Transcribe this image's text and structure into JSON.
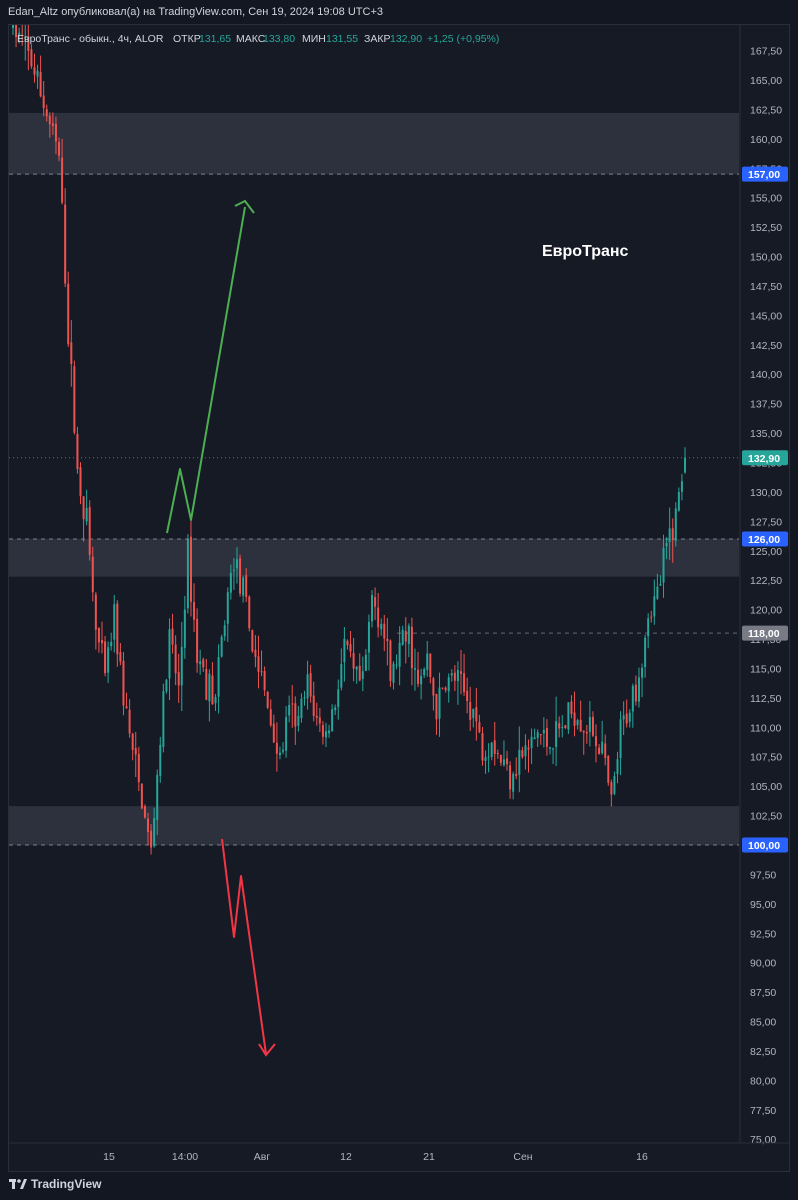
{
  "header": {
    "publisher_line": "Edan_Altz опубликовал(а) на TradingView.com, Сен 19, 2024 19:08 UTC+3"
  },
  "legend": {
    "symbol": "ЕвроТранс - обыкн., 4ч, ALOR",
    "open_label": "ОТКР",
    "open_value": "131,65",
    "high_label": "МАКС",
    "high_value": "133,80",
    "low_label": "МИН",
    "low_value": "131,55",
    "close_label": "ЗАКР",
    "close_value": "132,90",
    "change": "+1,25 (+0,95%)"
  },
  "annotation_text": "ЕвроТранс",
  "footer": {
    "brand": "TradingView"
  },
  "colors": {
    "background": "#161a25",
    "up": "#26a69a",
    "down": "#ef5350",
    "zone": "#363a45",
    "green_arrow": "#4caf50",
    "red_arrow": "#f23645",
    "price_tag_blue": "#2962ff",
    "price_tag_current": "#26a69a",
    "price_tag_gray": "#787b86"
  },
  "chart_data": {
    "type": "candlestick",
    "title": "ЕвроТранс",
    "timeframe": "4ч",
    "x_tick_labels": [
      "15",
      "14:00",
      "Авг",
      "12",
      "21",
      "Сен",
      "16"
    ],
    "ylim": [
      74,
      170
    ],
    "y_ticks": [
      75,
      77.5,
      80,
      82.5,
      85,
      87.5,
      90,
      92.5,
      95,
      97.5,
      100,
      102.5,
      105,
      107.5,
      110,
      112.5,
      115,
      117.5,
      120,
      122.5,
      125,
      127.5,
      130,
      132.5,
      135,
      137.5,
      140,
      142.5,
      145,
      147.5,
      150,
      152.5,
      155,
      157.5,
      160,
      162.5,
      165,
      167.5
    ],
    "zones": [
      {
        "low": 157,
        "high": 162.2
      },
      {
        "low": 122.8,
        "high": 126
      },
      {
        "low": 100,
        "high": 103.3
      }
    ],
    "price_tags": [
      {
        "value": 157.0,
        "label": "157,00",
        "style": "blue"
      },
      {
        "value": 132.9,
        "label": "132,90",
        "style": "current"
      },
      {
        "value": 126.0,
        "label": "126,00",
        "style": "blue"
      },
      {
        "value": 118.0,
        "label": "118,00",
        "style": "gray"
      },
      {
        "value": 100.0,
        "label": "100,00",
        "style": "blue"
      }
    ],
    "last_price": 132.9,
    "current_open": 131.65,
    "current_high": 133.8,
    "current_low": 131.55,
    "current_close": 132.9,
    "price_path": [
      169.5,
      168.2,
      166.5,
      163.8,
      161.2,
      158.4,
      143.5,
      131.8,
      127.5,
      118.3,
      114.2,
      119.5,
      112.6,
      107.8,
      103.6,
      99.4,
      109.2,
      117.4,
      113.2,
      124.7,
      116.2,
      114.0,
      112.3,
      119.4,
      124.6,
      121.2,
      117.1,
      114.0,
      110.5,
      107.2,
      111.2,
      110.4,
      113.5,
      110.6,
      109.2,
      112.4,
      116.9,
      114.3,
      113.4,
      121.0,
      119.2,
      114.2,
      116.5,
      117.8,
      113.1,
      115.7,
      111.5,
      113.8,
      114.2,
      112.8,
      111.5,
      108.1,
      109.3,
      107.2,
      106.2,
      107.5,
      108.0,
      109.6,
      108.7,
      109.2,
      110.4,
      111.6,
      110.4,
      109.6,
      108.0,
      103.2,
      109.5,
      112.0,
      114.6,
      119.7,
      121.2,
      125.2,
      128.2,
      132.9
    ]
  }
}
